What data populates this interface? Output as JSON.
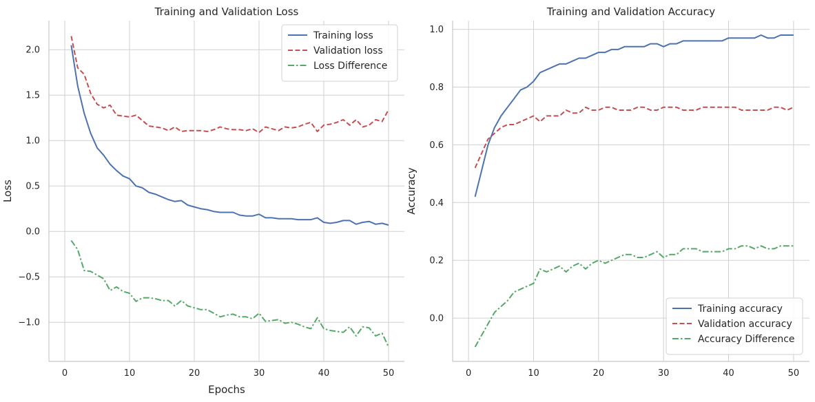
{
  "colors": {
    "train": "#4c72b0",
    "val": "#c44e52",
    "diff": "#55a868"
  },
  "chart_data": [
    {
      "type": "line",
      "title": "Training and Validation Loss",
      "xlabel": "Epochs",
      "ylabel": "Loss",
      "xlim": [
        -2.45,
        52.45
      ],
      "ylim": [
        -1.43,
        2.32
      ],
      "xticks": [
        0,
        10,
        20,
        30,
        40,
        50
      ],
      "xtick_labels": [
        "0",
        "10",
        "20",
        "30",
        "40",
        "50"
      ],
      "yticks": [
        -1.0,
        -0.5,
        0.0,
        0.5,
        1.0,
        1.5,
        2.0
      ],
      "ytick_labels": [
        "−1.0",
        "−0.5",
        "0.0",
        "0.5",
        "1.0",
        "1.5",
        "2.0"
      ],
      "grid": true,
      "legend_position": "top-right",
      "x": [
        1,
        2,
        3,
        4,
        5,
        6,
        7,
        8,
        9,
        10,
        11,
        12,
        13,
        14,
        15,
        16,
        17,
        18,
        19,
        20,
        21,
        22,
        23,
        24,
        25,
        26,
        27,
        28,
        29,
        30,
        31,
        32,
        33,
        34,
        35,
        36,
        37,
        38,
        39,
        40,
        41,
        42,
        43,
        44,
        45,
        46,
        47,
        48,
        49,
        50
      ],
      "series": [
        {
          "name": "Training loss",
          "color_key": "train",
          "dash": "solid",
          "values": [
            2.05,
            1.6,
            1.3,
            1.08,
            0.92,
            0.84,
            0.74,
            0.67,
            0.61,
            0.58,
            0.5,
            0.48,
            0.43,
            0.41,
            0.38,
            0.35,
            0.33,
            0.34,
            0.29,
            0.27,
            0.25,
            0.24,
            0.22,
            0.21,
            0.21,
            0.21,
            0.18,
            0.17,
            0.17,
            0.19,
            0.15,
            0.15,
            0.14,
            0.14,
            0.14,
            0.13,
            0.13,
            0.13,
            0.15,
            0.1,
            0.09,
            0.1,
            0.12,
            0.12,
            0.08,
            0.1,
            0.11,
            0.08,
            0.09,
            0.07
          ]
        },
        {
          "name": "Validation loss",
          "color_key": "val",
          "dash": "dashed",
          "values": [
            2.15,
            1.8,
            1.73,
            1.52,
            1.4,
            1.36,
            1.39,
            1.28,
            1.27,
            1.26,
            1.28,
            1.22,
            1.16,
            1.15,
            1.14,
            1.11,
            1.15,
            1.1,
            1.11,
            1.11,
            1.11,
            1.1,
            1.12,
            1.15,
            1.13,
            1.12,
            1.12,
            1.11,
            1.13,
            1.09,
            1.15,
            1.13,
            1.11,
            1.15,
            1.14,
            1.15,
            1.18,
            1.2,
            1.1,
            1.17,
            1.18,
            1.2,
            1.23,
            1.17,
            1.23,
            1.15,
            1.17,
            1.23,
            1.21,
            1.34
          ]
        },
        {
          "name": "Loss Difference",
          "color_key": "diff",
          "dash": "dashdot",
          "values": [
            -0.1,
            -0.2,
            -0.43,
            -0.44,
            -0.48,
            -0.52,
            -0.65,
            -0.61,
            -0.66,
            -0.68,
            -0.77,
            -0.73,
            -0.73,
            -0.74,
            -0.76,
            -0.76,
            -0.82,
            -0.76,
            -0.82,
            -0.84,
            -0.86,
            -0.86,
            -0.9,
            -0.94,
            -0.92,
            -0.91,
            -0.94,
            -0.94,
            -0.96,
            -0.9,
            -0.99,
            -0.98,
            -0.97,
            -1.01,
            -1.0,
            -1.02,
            -1.05,
            -1.07,
            -0.95,
            -1.07,
            -1.09,
            -1.1,
            -1.11,
            -1.05,
            -1.15,
            -1.05,
            -1.06,
            -1.15,
            -1.12,
            -1.27
          ]
        }
      ]
    },
    {
      "type": "line",
      "title": "Training and Validation Accuracy",
      "xlabel": "",
      "ylabel": "Accuracy",
      "xlim": [
        -2.45,
        52.45
      ],
      "ylim": [
        -0.15,
        1.03
      ],
      "xticks": [
        0,
        10,
        20,
        30,
        40,
        50
      ],
      "xtick_labels": [
        "0",
        "10",
        "20",
        "30",
        "40",
        "50"
      ],
      "yticks": [
        0.0,
        0.2,
        0.4,
        0.6,
        0.8,
        1.0
      ],
      "ytick_labels": [
        "0.0",
        "0.2",
        "0.4",
        "0.6",
        "0.8",
        "1.0"
      ],
      "grid": true,
      "legend_position": "bottom-right",
      "x": [
        1,
        2,
        3,
        4,
        5,
        6,
        7,
        8,
        9,
        10,
        11,
        12,
        13,
        14,
        15,
        16,
        17,
        18,
        19,
        20,
        21,
        22,
        23,
        24,
        25,
        26,
        27,
        28,
        29,
        30,
        31,
        32,
        33,
        34,
        35,
        36,
        37,
        38,
        39,
        40,
        41,
        42,
        43,
        44,
        45,
        46,
        47,
        48,
        49,
        50
      ],
      "series": [
        {
          "name": "Training accuracy",
          "color_key": "train",
          "dash": "solid",
          "values": [
            0.42,
            0.51,
            0.6,
            0.66,
            0.7,
            0.73,
            0.76,
            0.79,
            0.8,
            0.82,
            0.85,
            0.86,
            0.87,
            0.88,
            0.88,
            0.89,
            0.9,
            0.9,
            0.91,
            0.92,
            0.92,
            0.93,
            0.93,
            0.94,
            0.94,
            0.94,
            0.94,
            0.95,
            0.95,
            0.94,
            0.95,
            0.95,
            0.96,
            0.96,
            0.96,
            0.96,
            0.96,
            0.96,
            0.96,
            0.97,
            0.97,
            0.97,
            0.97,
            0.97,
            0.98,
            0.97,
            0.97,
            0.98,
            0.98,
            0.98
          ]
        },
        {
          "name": "Validation accuracy",
          "color_key": "val",
          "dash": "dashed",
          "values": [
            0.52,
            0.57,
            0.62,
            0.64,
            0.66,
            0.67,
            0.67,
            0.68,
            0.69,
            0.7,
            0.68,
            0.7,
            0.7,
            0.7,
            0.72,
            0.71,
            0.71,
            0.73,
            0.72,
            0.72,
            0.73,
            0.73,
            0.72,
            0.72,
            0.72,
            0.73,
            0.73,
            0.72,
            0.72,
            0.73,
            0.73,
            0.73,
            0.72,
            0.72,
            0.72,
            0.73,
            0.73,
            0.73,
            0.73,
            0.73,
            0.73,
            0.72,
            0.72,
            0.72,
            0.72,
            0.72,
            0.73,
            0.73,
            0.72,
            0.73
          ]
        },
        {
          "name": "Accuracy Difference",
          "color_key": "diff",
          "dash": "dashdot",
          "values": [
            -0.1,
            -0.06,
            -0.02,
            0.02,
            0.04,
            0.06,
            0.09,
            0.1,
            0.11,
            0.12,
            0.17,
            0.16,
            0.17,
            0.18,
            0.16,
            0.18,
            0.19,
            0.17,
            0.19,
            0.2,
            0.19,
            0.2,
            0.21,
            0.22,
            0.22,
            0.21,
            0.21,
            0.22,
            0.23,
            0.21,
            0.22,
            0.22,
            0.24,
            0.24,
            0.24,
            0.23,
            0.23,
            0.23,
            0.23,
            0.24,
            0.24,
            0.25,
            0.25,
            0.24,
            0.25,
            0.24,
            0.24,
            0.25,
            0.25,
            0.25
          ]
        }
      ]
    }
  ]
}
